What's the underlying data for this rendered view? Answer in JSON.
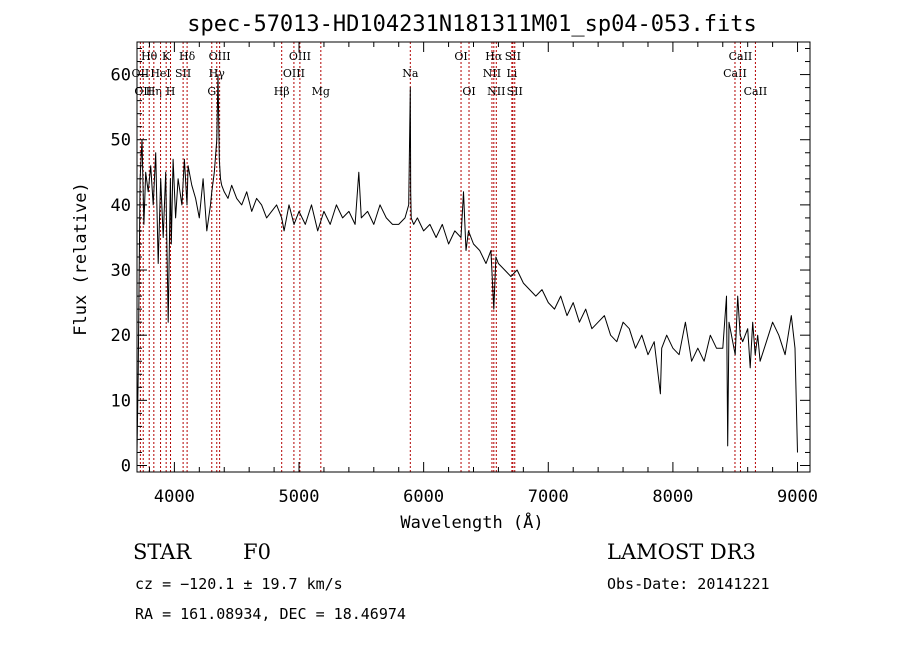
{
  "chart_data": {
    "type": "line",
    "title": "spec-57013-HD104231N181311M01_sp04-053.fits",
    "xlabel": "Wavelength (Å)",
    "ylabel": "Flux (relative)",
    "xlim": [
      3700,
      9100
    ],
    "ylim": [
      -1,
      65
    ],
    "x_ticks": [
      4000,
      5000,
      6000,
      7000,
      8000,
      9000
    ],
    "y_ticks": [
      0,
      10,
      20,
      30,
      40,
      50,
      60
    ],
    "x_minor_step": 200,
    "y_minor_step": 2,
    "series": [
      {
        "name": "spectrum",
        "x": [
          3700,
          3710,
          3725,
          3740,
          3755,
          3770,
          3790,
          3810,
          3830,
          3850,
          3870,
          3890,
          3910,
          3930,
          3950,
          3968,
          3975,
          3990,
          4010,
          4030,
          4060,
          4080,
          4101,
          4110,
          4140,
          4170,
          4200,
          4230,
          4260,
          4290,
          4300,
          4320,
          4340,
          4350,
          4360,
          4370,
          4380,
          4400,
          4430,
          4460,
          4500,
          4540,
          4580,
          4620,
          4660,
          4700,
          4740,
          4780,
          4820,
          4861,
          4880,
          4920,
          4960,
          5000,
          5050,
          5100,
          5150,
          5200,
          5250,
          5300,
          5350,
          5400,
          5450,
          5480,
          5500,
          5550,
          5600,
          5650,
          5700,
          5750,
          5800,
          5850,
          5880,
          5893,
          5896,
          5900,
          5920,
          5950,
          6000,
          6050,
          6100,
          6150,
          6200,
          6250,
          6300,
          6320,
          6340,
          6360,
          6400,
          6450,
          6500,
          6540,
          6563,
          6580,
          6600,
          6650,
          6700,
          6750,
          6800,
          6850,
          6900,
          6950,
          7000,
          7050,
          7100,
          7150,
          7200,
          7250,
          7300,
          7350,
          7400,
          7450,
          7500,
          7550,
          7600,
          7650,
          7700,
          7750,
          7800,
          7850,
          7900,
          7910,
          7950,
          8000,
          8050,
          8100,
          8150,
          8200,
          8250,
          8300,
          8350,
          8400,
          8430,
          8440,
          8450,
          8480,
          8500,
          8520,
          8540,
          8560,
          8600,
          8620,
          8640,
          8660,
          8680,
          8700,
          8750,
          8800,
          8850,
          8900,
          8950,
          8980,
          9000
        ],
        "values": [
          2,
          14,
          44,
          50,
          37,
          45,
          42,
          46,
          40,
          48,
          31,
          44,
          35,
          45,
          22,
          44,
          34,
          47,
          38,
          44,
          40,
          47,
          40,
          46,
          43,
          41,
          38,
          44,
          36,
          40,
          42,
          45,
          50,
          60,
          47,
          44,
          43,
          42,
          41,
          43,
          41,
          40,
          42,
          39,
          41,
          40,
          38,
          39,
          40,
          38,
          36,
          40,
          37,
          39,
          37,
          40,
          36,
          39,
          37,
          40,
          38,
          39,
          37,
          45,
          38,
          39,
          37,
          40,
          38,
          37,
          37,
          38,
          40,
          58,
          42,
          38,
          37,
          38,
          36,
          37,
          35,
          37,
          34,
          36,
          35,
          42,
          33,
          36,
          34,
          33,
          31,
          33,
          24,
          32,
          31,
          30,
          29,
          30,
          28,
          27,
          26,
          27,
          25,
          24,
          26,
          23,
          25,
          22,
          24,
          21,
          22,
          23,
          20,
          19,
          22,
          21,
          18,
          20,
          17,
          19,
          11,
          18,
          20,
          18,
          17,
          22,
          16,
          18,
          16,
          20,
          18,
          18,
          26,
          3,
          22,
          19,
          17,
          26,
          20,
          19,
          21,
          15,
          22,
          17,
          20,
          16,
          19,
          22,
          20,
          17,
          23,
          18,
          2
        ]
      }
    ],
    "line_markers": [
      {
        "x": 3727,
        "label": "OII",
        "row": 2
      },
      {
        "x": 3750,
        "label": "OII",
        "row": 3
      },
      {
        "x": 3798,
        "label": "Hθ",
        "row": 1
      },
      {
        "x": 3835,
        "label": "Hη",
        "row": 3
      },
      {
        "x": 3889,
        "label": "HeI",
        "row": 2
      },
      {
        "x": 3934,
        "label": "K",
        "row": 1
      },
      {
        "x": 3969,
        "label": "H",
        "row": 3
      },
      {
        "x": 4070,
        "label": "SII",
        "row": 2
      },
      {
        "x": 4102,
        "label": "Hδ",
        "row": 1
      },
      {
        "x": 4300,
        "label": "G",
        "row": 3
      },
      {
        "x": 4340,
        "label": "Hγ",
        "row": 2
      },
      {
        "x": 4363,
        "label": "OIII",
        "row": 1
      },
      {
        "x": 4861,
        "label": "Hβ",
        "row": 3
      },
      {
        "x": 4959,
        "label": "OIII",
        "row": 2
      },
      {
        "x": 5007,
        "label": "OIII",
        "row": 1
      },
      {
        "x": 5175,
        "label": "Mg",
        "row": 3
      },
      {
        "x": 5893,
        "label": "Na",
        "row": 2
      },
      {
        "x": 6300,
        "label": "OI",
        "row": 1
      },
      {
        "x": 6364,
        "label": "OI",
        "row": 3
      },
      {
        "x": 6548,
        "label": "NII",
        "row": 2
      },
      {
        "x": 6563,
        "label": "Hα",
        "row": 1
      },
      {
        "x": 6583,
        "label": "NII",
        "row": 3
      },
      {
        "x": 6708,
        "label": "Li",
        "row": 2
      },
      {
        "x": 6716,
        "label": "SII",
        "row": 1
      },
      {
        "x": 6731,
        "label": "SII",
        "row": 3
      },
      {
        "x": 8498,
        "label": "CaII",
        "row": 2
      },
      {
        "x": 8542,
        "label": "CaII",
        "row": 1
      },
      {
        "x": 8662,
        "label": "CaII",
        "row": 3
      }
    ]
  },
  "info": {
    "object_class": "STAR",
    "subclass": "F0",
    "survey": "LAMOST DR3",
    "redshift": "cz = −120.1 ± 19.7 km/s",
    "obs_date": "Obs-Date: 20141221",
    "coords": "RA = 161.08934, DEC =  18.46974"
  }
}
